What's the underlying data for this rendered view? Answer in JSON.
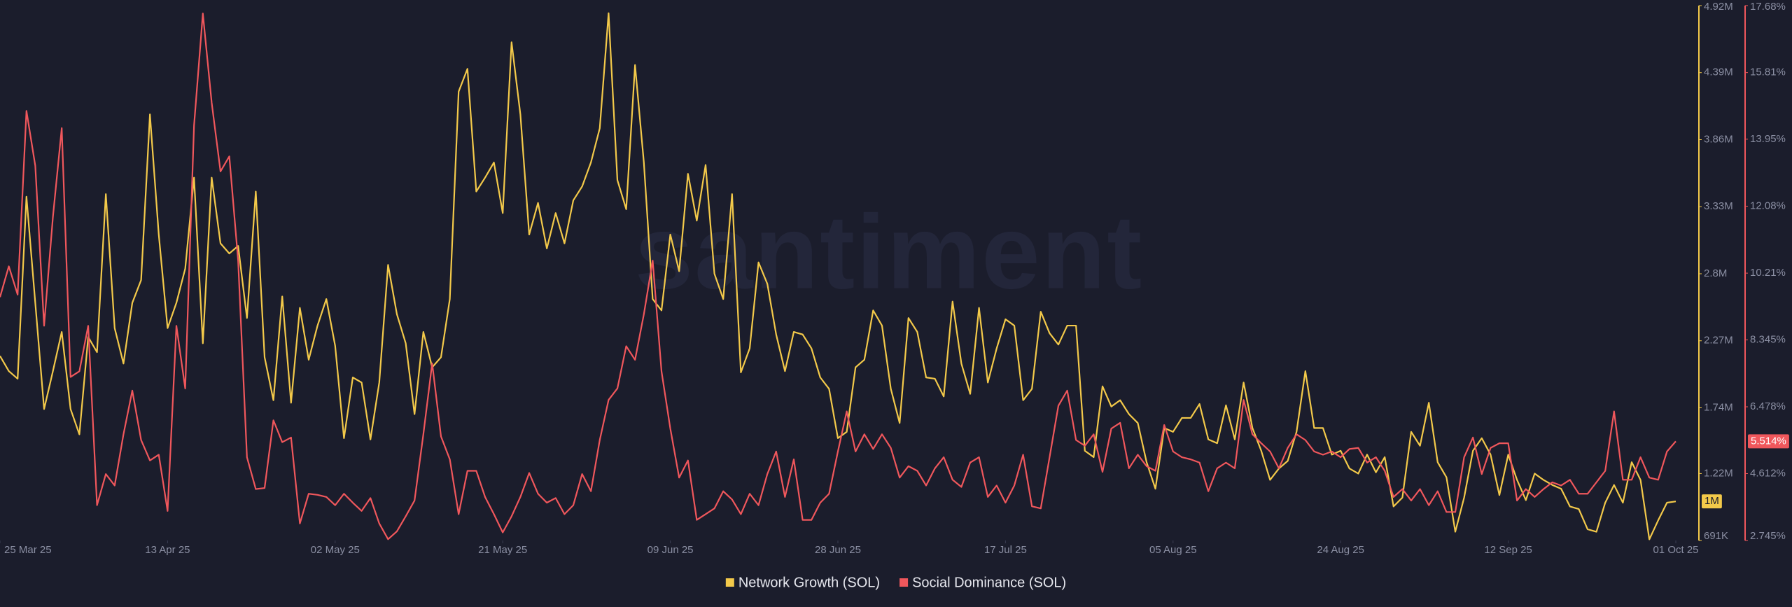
{
  "chart_data": {
    "type": "line",
    "watermark": "santiment",
    "x": [
      "2025-03-25",
      "2025-03-26",
      "2025-03-27",
      "2025-03-28",
      "2025-03-29",
      "2025-03-30",
      "2025-03-31",
      "2025-04-01",
      "2025-04-02",
      "2025-04-03",
      "2025-04-04",
      "2025-04-05",
      "2025-04-06",
      "2025-04-07",
      "2025-04-08",
      "2025-04-09",
      "2025-04-10",
      "2025-04-11",
      "2025-04-12",
      "2025-04-13",
      "2025-04-14",
      "2025-04-15",
      "2025-04-16",
      "2025-04-17",
      "2025-04-18",
      "2025-04-19",
      "2025-04-20",
      "2025-04-21",
      "2025-04-22",
      "2025-04-23",
      "2025-04-24",
      "2025-04-25",
      "2025-04-26",
      "2025-04-27",
      "2025-04-28",
      "2025-04-29",
      "2025-04-30",
      "2025-05-01",
      "2025-05-02",
      "2025-05-03",
      "2025-05-04",
      "2025-05-05",
      "2025-05-06",
      "2025-05-07",
      "2025-05-08",
      "2025-05-09",
      "2025-05-10",
      "2025-05-11",
      "2025-05-12",
      "2025-05-13",
      "2025-05-14",
      "2025-05-15",
      "2025-05-16",
      "2025-05-17",
      "2025-05-18",
      "2025-05-19",
      "2025-05-20",
      "2025-05-21",
      "2025-05-22",
      "2025-05-23",
      "2025-05-24",
      "2025-05-25",
      "2025-05-26",
      "2025-05-27",
      "2025-05-28",
      "2025-05-29",
      "2025-05-30",
      "2025-05-31",
      "2025-06-01",
      "2025-06-02",
      "2025-06-03",
      "2025-06-04",
      "2025-06-05",
      "2025-06-06",
      "2025-06-07",
      "2025-06-08",
      "2025-06-09",
      "2025-06-10",
      "2025-06-11",
      "2025-06-12",
      "2025-06-13",
      "2025-06-14",
      "2025-06-15",
      "2025-06-16",
      "2025-06-17",
      "2025-06-18",
      "2025-06-19",
      "2025-06-20",
      "2025-06-21",
      "2025-06-22",
      "2025-06-23",
      "2025-06-24",
      "2025-06-25",
      "2025-06-26",
      "2025-06-27",
      "2025-06-28",
      "2025-06-29",
      "2025-06-30",
      "2025-07-01",
      "2025-07-02",
      "2025-07-03",
      "2025-07-04",
      "2025-07-05",
      "2025-07-06",
      "2025-07-07",
      "2025-07-08",
      "2025-07-09",
      "2025-07-10",
      "2025-07-11",
      "2025-07-12",
      "2025-07-13",
      "2025-07-14",
      "2025-07-15",
      "2025-07-16",
      "2025-07-17",
      "2025-07-18",
      "2025-07-19",
      "2025-07-20",
      "2025-07-21",
      "2025-07-22",
      "2025-07-23",
      "2025-07-24",
      "2025-07-25",
      "2025-07-26",
      "2025-07-27",
      "2025-07-28",
      "2025-07-29",
      "2025-07-30",
      "2025-07-31",
      "2025-08-01",
      "2025-08-02",
      "2025-08-03",
      "2025-08-04",
      "2025-08-05",
      "2025-08-06",
      "2025-08-07",
      "2025-08-08",
      "2025-08-09",
      "2025-08-10",
      "2025-08-11",
      "2025-08-12",
      "2025-08-13",
      "2025-08-14",
      "2025-08-15",
      "2025-08-16",
      "2025-08-17",
      "2025-08-18",
      "2025-08-19",
      "2025-08-20",
      "2025-08-21",
      "2025-08-22",
      "2025-08-23",
      "2025-08-24",
      "2025-08-25",
      "2025-08-26",
      "2025-08-27",
      "2025-08-28",
      "2025-08-29",
      "2025-08-30",
      "2025-08-31",
      "2025-09-01",
      "2025-09-02",
      "2025-09-03",
      "2025-09-04",
      "2025-09-05",
      "2025-09-06",
      "2025-09-07",
      "2025-09-08",
      "2025-09-09",
      "2025-09-10",
      "2025-09-11",
      "2025-09-12",
      "2025-09-13",
      "2025-09-14",
      "2025-09-15",
      "2025-09-16",
      "2025-09-17",
      "2025-09-18",
      "2025-09-19",
      "2025-09-20",
      "2025-09-21",
      "2025-09-22",
      "2025-09-23",
      "2025-09-24",
      "2025-09-25",
      "2025-09-26",
      "2025-09-27",
      "2025-09-28",
      "2025-09-29",
      "2025-09-30",
      "2025-10-01"
    ],
    "xlim": [
      "2025-03-25",
      "2025-10-01"
    ],
    "xticks": [
      {
        "value": "2025-03-25",
        "label": "25 Mar 25"
      },
      {
        "value": "2025-04-13",
        "label": "13 Apr 25"
      },
      {
        "value": "2025-05-02",
        "label": "02 May 25"
      },
      {
        "value": "2025-05-21",
        "label": "21 May 25"
      },
      {
        "value": "2025-06-09",
        "label": "09 Jun 25"
      },
      {
        "value": "2025-06-28",
        "label": "28 Jun 25"
      },
      {
        "value": "2025-07-17",
        "label": "17 Jul 25"
      },
      {
        "value": "2025-08-05",
        "label": "05 Aug 25"
      },
      {
        "value": "2025-08-24",
        "label": "24 Aug 25"
      },
      {
        "value": "2025-09-12",
        "label": "12 Sep 25"
      },
      {
        "value": "2025-10-01",
        "label": "01 Oct 25"
      }
    ],
    "ylim": [
      691000,
      4920000
    ],
    "yticks": [
      {
        "value": 4920000,
        "label": "4.92M"
      },
      {
        "value": 4390000,
        "label": "4.39M"
      },
      {
        "value": 3860000,
        "label": "3.86M"
      },
      {
        "value": 3330000,
        "label": "3.33M"
      },
      {
        "value": 2800000,
        "label": "2.8M"
      },
      {
        "value": 2270000,
        "label": "2.27M"
      },
      {
        "value": 1740000,
        "label": "1.74M"
      },
      {
        "value": 1220000,
        "label": "1.22M"
      },
      {
        "value": 691000,
        "label": "691K"
      }
    ],
    "y2lim": [
      2.745,
      17.68
    ],
    "y2ticks": [
      {
        "value": 17.68,
        "label": "17.68%"
      },
      {
        "value": 15.81,
        "label": "15.81%"
      },
      {
        "value": 13.95,
        "label": "13.95%"
      },
      {
        "value": 12.08,
        "label": "12.08%"
      },
      {
        "value": 10.21,
        "label": "10.21%"
      },
      {
        "value": 8.345,
        "label": "8.345%"
      },
      {
        "value": 6.478,
        "label": "6.478%"
      },
      {
        "value": 4.612,
        "label": "4.612%"
      },
      {
        "value": 2.745,
        "label": "2.745%"
      }
    ],
    "grid": false,
    "legend": "bottom",
    "series": [
      {
        "name": "Network Growth (SOL)",
        "color": "#f3c94a",
        "axis": "y",
        "last_label": "1M",
        "values": [
          2150000,
          2030000,
          1970000,
          3410000,
          2570000,
          1730000,
          2030000,
          2340000,
          1730000,
          1530000,
          2300000,
          2180000,
          3430000,
          2370000,
          2090000,
          2570000,
          2750000,
          4060000,
          3110000,
          2370000,
          2570000,
          2840000,
          3560000,
          2250000,
          3560000,
          3040000,
          2960000,
          3020000,
          2450000,
          3450000,
          2140000,
          1800000,
          2620000,
          1780000,
          2530000,
          2120000,
          2390000,
          2600000,
          2230000,
          1500000,
          1980000,
          1940000,
          1490000,
          1940000,
          2870000,
          2480000,
          2250000,
          1690000,
          2340000,
          2060000,
          2140000,
          2600000,
          4240000,
          4420000,
          3450000,
          3560000,
          3680000,
          3280000,
          4630000,
          4060000,
          3110000,
          3360000,
          3000000,
          3280000,
          3040000,
          3380000,
          3490000,
          3680000,
          3950000,
          4860000,
          3540000,
          3310000,
          4450000,
          3680000,
          2600000,
          2510000,
          3110000,
          2820000,
          3590000,
          3220000,
          3660000,
          2800000,
          2600000,
          3430000,
          2020000,
          2210000,
          2890000,
          2720000,
          2320000,
          2030000,
          2340000,
          2320000,
          2210000,
          1980000,
          1890000,
          1500000,
          1550000,
          2060000,
          2120000,
          2510000,
          2390000,
          1890000,
          1620000,
          2450000,
          2340000,
          1980000,
          1970000,
          1830000,
          2580000,
          2090000,
          1850000,
          2530000,
          1940000,
          2210000,
          2440000,
          2390000,
          1800000,
          1890000,
          2500000,
          2330000,
          2240000,
          2390000,
          2390000,
          1400000,
          1350000,
          1910000,
          1750000,
          1800000,
          1690000,
          1620000,
          1310000,
          1100000,
          1580000,
          1550000,
          1660000,
          1660000,
          1770000,
          1490000,
          1460000,
          1760000,
          1490000,
          1940000,
          1580000,
          1400000,
          1170000,
          1260000,
          1320000,
          1550000,
          2030000,
          1580000,
          1580000,
          1370000,
          1400000,
          1260000,
          1220000,
          1370000,
          1230000,
          1350000,
          960000,
          1030000,
          1550000,
          1440000,
          1780000,
          1310000,
          1190000,
          760000,
          1030000,
          1400000,
          1500000,
          1370000,
          1050000,
          1370000,
          1170000,
          1010000,
          1220000,
          1170000,
          1130000,
          1100000,
          960000,
          940000,
          780000,
          760000,
          990000,
          1130000,
          990000,
          1310000,
          1170000,
          700000,
          850000,
          990000,
          1000000
        ]
      },
      {
        "name": "Social Dominance (SOL)",
        "color": "#f0575c",
        "axis": "y2",
        "last_label": "5.514%",
        "values": [
          9.54,
          10.4,
          9.61,
          14.74,
          13.21,
          8.74,
          11.78,
          14.26,
          7.31,
          7.47,
          8.74,
          3.73,
          4.6,
          4.28,
          5.71,
          6.93,
          5.55,
          4.98,
          5.14,
          3.57,
          8.74,
          6.99,
          14.33,
          17.46,
          14.97,
          13.05,
          13.47,
          10.56,
          5.07,
          4.18,
          4.21,
          6.1,
          5.49,
          5.62,
          3.22,
          4.05,
          4.02,
          3.96,
          3.73,
          4.05,
          3.8,
          3.57,
          3.93,
          3.22,
          2.78,
          3.0,
          3.42,
          3.86,
          5.71,
          7.69,
          5.65,
          5.01,
          3.48,
          4.69,
          4.69,
          3.96,
          3.48,
          2.97,
          3.42,
          3.96,
          4.63,
          4.05,
          3.8,
          3.93,
          3.48,
          3.73,
          4.6,
          4.12,
          5.55,
          6.67,
          6.99,
          8.17,
          7.79,
          9.06,
          10.56,
          7.47,
          5.87,
          4.5,
          4.98,
          3.32,
          3.48,
          3.64,
          4.12,
          3.89,
          3.48,
          4.05,
          3.73,
          4.6,
          5.23,
          3.96,
          5.01,
          3.32,
          3.32,
          3.8,
          4.05,
          5.23,
          6.35,
          5.23,
          5.71,
          5.3,
          5.71,
          5.33,
          4.5,
          4.82,
          4.69,
          4.28,
          4.76,
          5.07,
          4.44,
          4.24,
          4.92,
          5.07,
          3.96,
          4.28,
          3.8,
          4.28,
          5.14,
          3.7,
          3.64,
          5.07,
          6.51,
          6.93,
          5.55,
          5.39,
          5.71,
          4.66,
          5.87,
          6.03,
          4.76,
          5.14,
          4.82,
          4.69,
          5.97,
          5.23,
          5.07,
          5.01,
          4.92,
          4.12,
          4.76,
          4.92,
          4.76,
          6.67,
          5.71,
          5.46,
          5.23,
          4.76,
          5.33,
          5.71,
          5.55,
          5.23,
          5.14,
          5.23,
          5.07,
          5.3,
          5.33,
          4.92,
          5.07,
          4.69,
          3.96,
          4.18,
          3.86,
          4.18,
          3.73,
          4.12,
          3.54,
          3.54,
          5.07,
          5.62,
          4.6,
          5.33,
          5.46,
          5.46,
          3.86,
          4.18,
          3.96,
          4.18,
          4.37,
          4.28,
          4.44,
          4.05,
          4.05,
          4.37,
          4.69,
          6.35,
          4.44,
          4.44,
          5.07,
          4.5,
          4.44,
          5.23,
          5.514
        ]
      }
    ]
  }
}
